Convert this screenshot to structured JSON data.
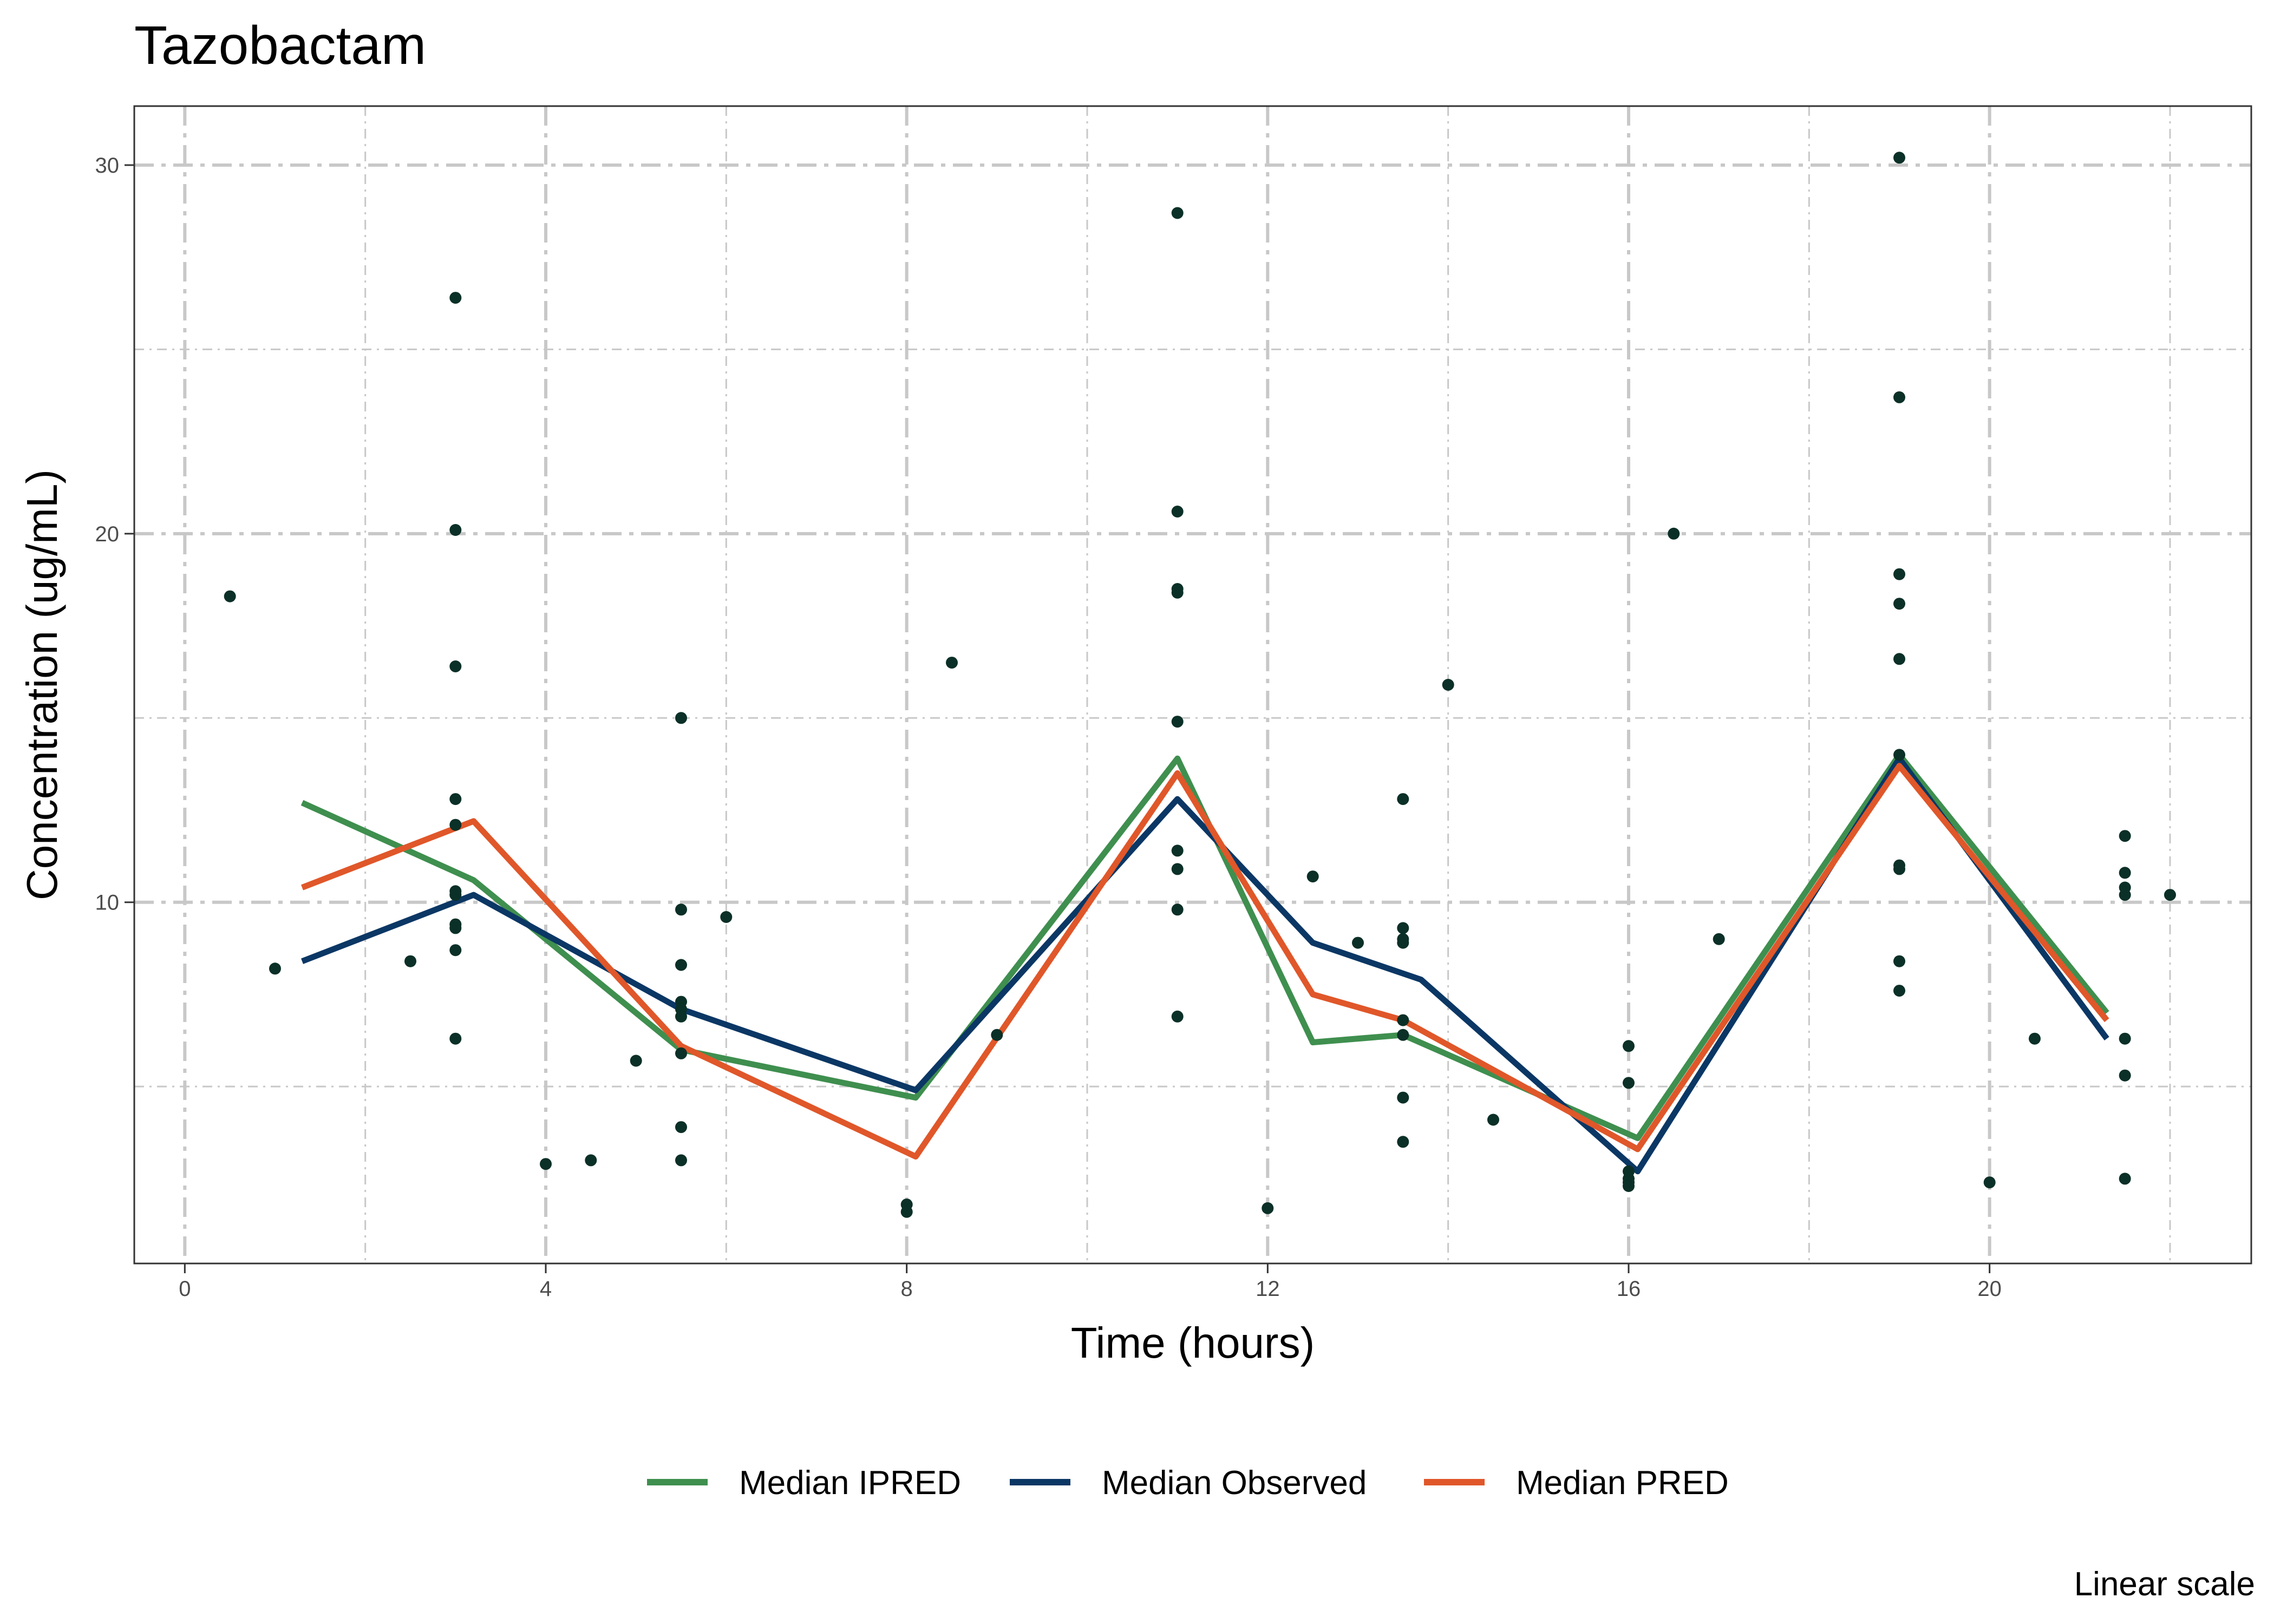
{
  "chart_data": {
    "type": "line",
    "title": "Tazobactam",
    "xlabel": "Time (hours)",
    "ylabel": "Concentration (ug/mL)",
    "caption": "Linear scale",
    "xlim": [
      -0.56,
      22.9
    ],
    "ylim": [
      0.2,
      31.6
    ],
    "x_ticks": [
      0,
      4,
      8,
      12,
      16,
      20
    ],
    "x_tick_labels": [
      "0",
      "4",
      "8",
      "12",
      "16",
      "20"
    ],
    "x_minor_ticks": [
      2,
      6,
      10,
      14,
      18,
      22
    ],
    "y_ticks": [
      10,
      20,
      30
    ],
    "y_tick_labels": [
      "10",
      "20",
      "30"
    ],
    "y_minor_ticks": [
      5,
      15,
      25
    ],
    "grid": true,
    "legend_position": "bottom",
    "colors": {
      "points": "#0b3027",
      "grid": "#c8c8c8",
      "panel_border": "#333333"
    },
    "series": [
      {
        "name": "Median IPRED",
        "color": "#3f8f4f",
        "x": [
          1.3,
          3.2,
          5.5,
          8.1,
          11,
          12.5,
          13.5,
          16.1,
          19,
          21.3
        ],
        "y": [
          12.7,
          10.6,
          6,
          4.7,
          13.9,
          6.2,
          6.4,
          3.6,
          14,
          7
        ]
      },
      {
        "name": "Median Observed",
        "color": "#0b3765",
        "x": [
          1.3,
          3.2,
          5.5,
          8.1,
          11,
          12.5,
          13.7,
          16.1,
          19,
          21.3
        ],
        "y": [
          8.4,
          10.2,
          7.1,
          4.9,
          12.8,
          8.9,
          7.9,
          2.7,
          13.9,
          6.3
        ]
      },
      {
        "name": "Median PRED",
        "color": "#e0572a",
        "x": [
          1.3,
          3.2,
          5.5,
          8.1,
          11,
          12.5,
          13.5,
          16.1,
          19,
          21.3
        ],
        "y": [
          10.4,
          12.2,
          6.1,
          3.1,
          13.5,
          7.5,
          6.8,
          3.3,
          13.7,
          6.8
        ]
      }
    ],
    "observations": [
      [
        0.5,
        18.3
      ],
      [
        1,
        8.2
      ],
      [
        2.5,
        8.4
      ],
      [
        3,
        26.4
      ],
      [
        3,
        20.1
      ],
      [
        3,
        16.4
      ],
      [
        3,
        12.8
      ],
      [
        3,
        12.1
      ],
      [
        3,
        10.3
      ],
      [
        3,
        10.2
      ],
      [
        3,
        9.4
      ],
      [
        3,
        9.3
      ],
      [
        3,
        8.7
      ],
      [
        3,
        6.3
      ],
      [
        4,
        2.9
      ],
      [
        4.5,
        3
      ],
      [
        5,
        5.7
      ],
      [
        5.5,
        15
      ],
      [
        5.5,
        9.8
      ],
      [
        5.5,
        8.3
      ],
      [
        5.5,
        7.3
      ],
      [
        5.5,
        7.1
      ],
      [
        5.5,
        6.9
      ],
      [
        5.5,
        5.9
      ],
      [
        5.5,
        3.9
      ],
      [
        5.5,
        3
      ],
      [
        6,
        9.6
      ],
      [
        8,
        1.8
      ],
      [
        8,
        1.6
      ],
      [
        8.5,
        16.5
      ],
      [
        9,
        6.4
      ],
      [
        11,
        28.7
      ],
      [
        11,
        20.6
      ],
      [
        11,
        18.5
      ],
      [
        11,
        18.4
      ],
      [
        11,
        14.9
      ],
      [
        11,
        11.4
      ],
      [
        11,
        10.9
      ],
      [
        11,
        9.8
      ],
      [
        11,
        6.9
      ],
      [
        12,
        1.7
      ],
      [
        12.5,
        10.7
      ],
      [
        13,
        8.9
      ],
      [
        13.5,
        12.8
      ],
      [
        13.5,
        9.3
      ],
      [
        13.5,
        9
      ],
      [
        13.5,
        8.9
      ],
      [
        13.5,
        6.8
      ],
      [
        13.5,
        6.4
      ],
      [
        13.5,
        4.7
      ],
      [
        13.5,
        3.5
      ],
      [
        14,
        15.9
      ],
      [
        14.5,
        4.1
      ],
      [
        16,
        6.1
      ],
      [
        16,
        5.1
      ],
      [
        16,
        2.7
      ],
      [
        16,
        2.5
      ],
      [
        16,
        2.4
      ],
      [
        16,
        2.3
      ],
      [
        16.5,
        20
      ],
      [
        17,
        9
      ],
      [
        19,
        30.2
      ],
      [
        19,
        23.7
      ],
      [
        19,
        18.9
      ],
      [
        19,
        18.1
      ],
      [
        19,
        16.6
      ],
      [
        19,
        14
      ],
      [
        19,
        11
      ],
      [
        19,
        10.9
      ],
      [
        19,
        8.4
      ],
      [
        19,
        7.6
      ],
      [
        20,
        2.4
      ],
      [
        20.5,
        6.3
      ],
      [
        21.5,
        11.8
      ],
      [
        21.5,
        10.8
      ],
      [
        21.5,
        10.4
      ],
      [
        21.5,
        10.2
      ],
      [
        21.5,
        6.3
      ],
      [
        21.5,
        5.3
      ],
      [
        21.5,
        2.5
      ],
      [
        22,
        10.2
      ]
    ]
  }
}
